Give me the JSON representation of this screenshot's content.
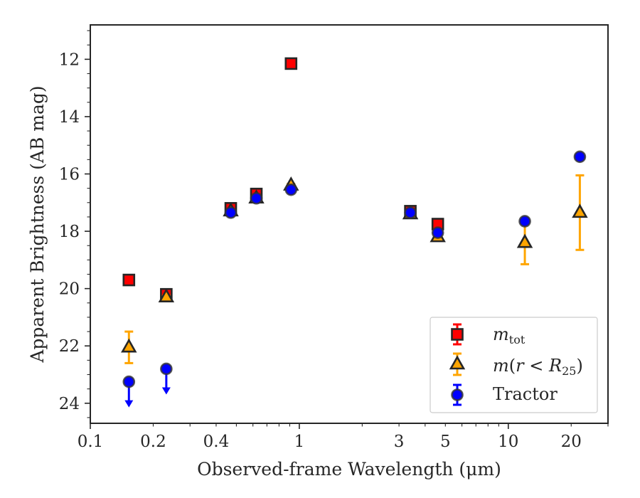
{
  "chart_data": {
    "type": "scatter",
    "title": "",
    "xlabel": "Observed-frame Wavelength (μm)",
    "ylabel": "Apparent Brightness (AB mag)",
    "x_scale": "log",
    "xlim": [
      0.1,
      30
    ],
    "ylim": [
      24.7,
      10.8
    ],
    "y_inverted": true,
    "grid": false,
    "legend_position": "lower-right",
    "x_ticks": [
      {
        "value": 0.1,
        "label": "0.1"
      },
      {
        "value": 0.2,
        "label": "0.2"
      },
      {
        "value": 0.4,
        "label": "0.4"
      },
      {
        "value": 1,
        "label": "1"
      },
      {
        "value": 3,
        "label": "3"
      },
      {
        "value": 5,
        "label": "5"
      },
      {
        "value": 10,
        "label": "10"
      },
      {
        "value": 20,
        "label": "20"
      }
    ],
    "y_ticks": [
      {
        "value": 12,
        "label": "12"
      },
      {
        "value": 14,
        "label": "14"
      },
      {
        "value": 16,
        "label": "16"
      },
      {
        "value": 18,
        "label": "18"
      },
      {
        "value": 20,
        "label": "20"
      },
      {
        "value": 22,
        "label": "22"
      },
      {
        "value": 24,
        "label": "24"
      }
    ],
    "series": [
      {
        "name": "m_tot",
        "marker": "square",
        "color": "#ff0000",
        "edge_color": "#262626",
        "error_color": "#ff0000",
        "points": [
          {
            "x": 0.153,
            "y": 19.7,
            "err": 0.05
          },
          {
            "x": 0.231,
            "y": 20.2,
            "err": 0.05
          },
          {
            "x": 0.47,
            "y": 17.2,
            "err": 0.05
          },
          {
            "x": 0.623,
            "y": 16.7,
            "err": 0.05
          },
          {
            "x": 0.913,
            "y": 12.15,
            "err": 0.05
          },
          {
            "x": 3.4,
            "y": 17.3,
            "err": 0.05
          },
          {
            "x": 4.6,
            "y": 17.75,
            "err": 0.05
          }
        ]
      },
      {
        "name": "m(r < R25)",
        "marker": "triangle",
        "color": "#ffa500",
        "edge_color": "#262626",
        "error_color": "#ffa500",
        "points": [
          {
            "x": 0.153,
            "y": 22.05,
            "err": 0.55
          },
          {
            "x": 0.231,
            "y": 20.3,
            "err": 0.05
          },
          {
            "x": 0.47,
            "y": 17.3,
            "err": 0.05
          },
          {
            "x": 0.623,
            "y": 16.85,
            "err": 0.05
          },
          {
            "x": 0.913,
            "y": 16.4,
            "err": 0.05
          },
          {
            "x": 3.4,
            "y": 17.4,
            "err": 0.05
          },
          {
            "x": 4.6,
            "y": 18.2,
            "err": 0.05
          },
          {
            "x": 12.0,
            "y": 18.4,
            "err": 0.75
          },
          {
            "x": 22.0,
            "y": 17.35,
            "err": 1.3
          }
        ]
      },
      {
        "name": "Tractor",
        "marker": "circle",
        "color": "#0000ff",
        "edge_color": "#262626",
        "error_color": "#0000ff",
        "points": [
          {
            "x": 0.153,
            "y": 23.25,
            "err": 0.05,
            "upper_limit": true
          },
          {
            "x": 0.231,
            "y": 22.8,
            "err": 0.05,
            "upper_limit": true
          },
          {
            "x": 0.47,
            "y": 17.35,
            "err": 0.05
          },
          {
            "x": 0.623,
            "y": 16.85,
            "err": 0.05
          },
          {
            "x": 0.913,
            "y": 16.55,
            "err": 0.05
          },
          {
            "x": 3.4,
            "y": 17.35,
            "err": 0.05
          },
          {
            "x": 4.6,
            "y": 18.05,
            "err": 0.05
          },
          {
            "x": 12.0,
            "y": 17.65,
            "err": 0.05
          },
          {
            "x": 22.0,
            "y": 15.4,
            "err": 0.05
          }
        ]
      }
    ]
  }
}
